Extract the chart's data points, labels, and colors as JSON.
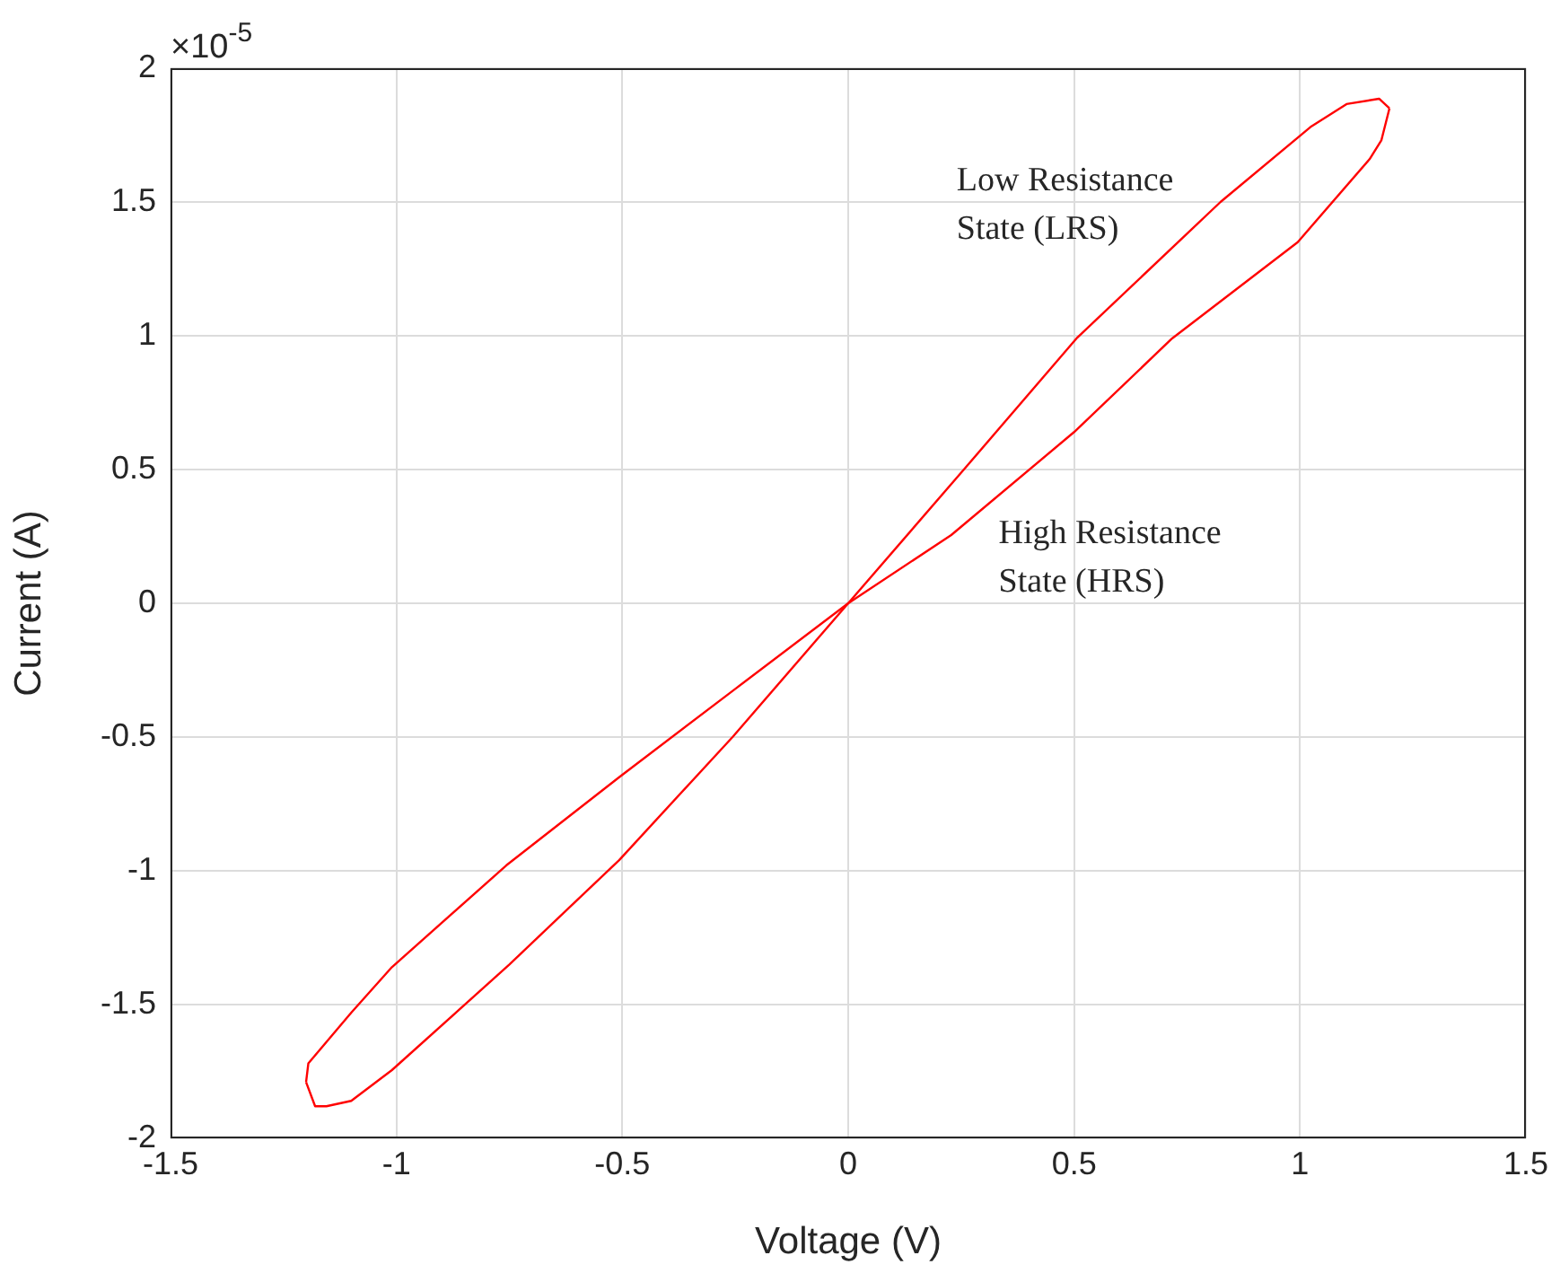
{
  "chart_data": {
    "type": "line",
    "xlabel": "Voltage (V)",
    "ylabel": "Current (A)",
    "xlim": [
      -1.5,
      1.5
    ],
    "xticks": [
      -1.5,
      -1,
      -0.5,
      0,
      0.5,
      1,
      1.5
    ],
    "ylim": [
      -2,
      2
    ],
    "yticks": [
      -2,
      -1.5,
      -1,
      -0.5,
      0,
      0.5,
      1,
      1.5,
      2
    ],
    "grid": true,
    "legend": false,
    "marker": "none",
    "line_style": "solid",
    "series": [
      {
        "color": "#ff0000",
        "x": [
          -1.2,
          -1.18,
          -1.155,
          -1.1,
          -1.01,
          -0.75,
          -0.507,
          -0.256,
          0,
          0.256,
          0.507,
          0.824,
          1.023,
          1.103,
          1.175,
          1.198
        ],
        "values": [
          -1.79,
          -1.88,
          -1.88,
          -1.86,
          -1.745,
          -1.35,
          -0.96,
          -0.5,
          0,
          0.5,
          0.993,
          1.5,
          1.78,
          1.866,
          1.886,
          1.85
        ]
      },
      {
        "color": "#ff0000",
        "x": [
          -1.2,
          -1.195,
          -1.1,
          -1.01,
          -0.757,
          -0.507,
          -0.25,
          0,
          0.228,
          0.5,
          0.717,
          0.995,
          1.154,
          1.18,
          1.198
        ],
        "values": [
          -1.79,
          -1.72,
          -1.53,
          -1.36,
          -0.98,
          -0.65,
          -0.32,
          0,
          0.255,
          0.64,
          0.99,
          1.35,
          1.66,
          1.73,
          1.85
        ]
      }
    ],
    "annotations": [
      "×10$^{-5}$",
      "Low Resistance\nState (LRS)",
      "High Resistance\nState (HRS)"
    ]
  }
}
